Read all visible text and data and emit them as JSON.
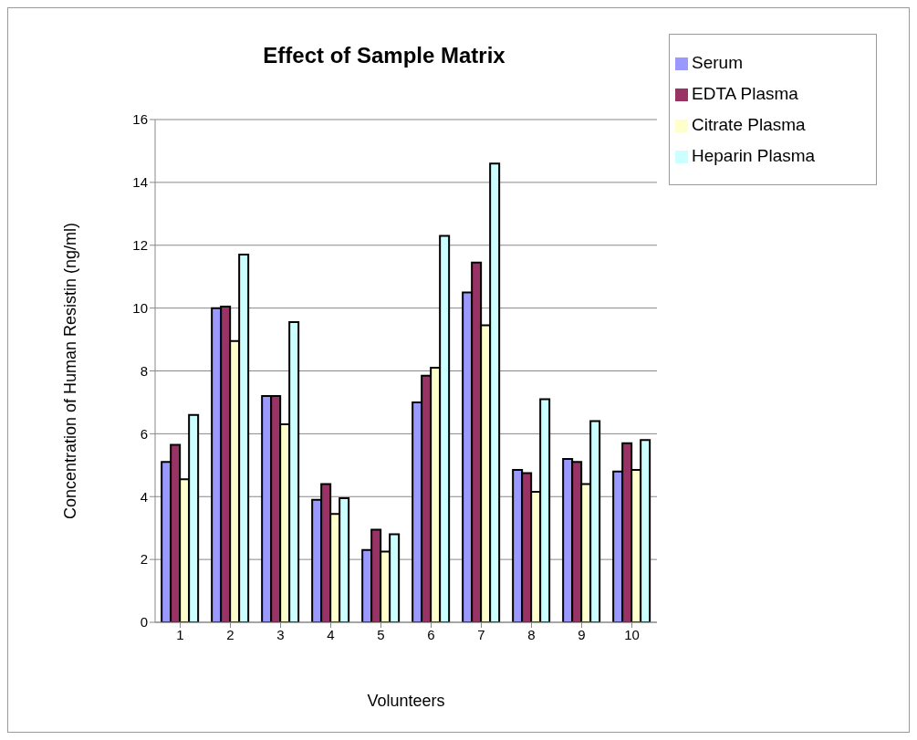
{
  "chart_data": {
    "type": "bar",
    "title": "Effect of Sample Matrix",
    "xlabel": "Volunteers",
    "ylabel": "Concentration of  Human Resistin (ng/ml)",
    "categories": [
      "1",
      "2",
      "3",
      "4",
      "5",
      "6",
      "7",
      "8",
      "9",
      "10"
    ],
    "series": [
      {
        "name": "Serum",
        "color": "#9999ff",
        "values": [
          5.1,
          10.0,
          7.2,
          3.9,
          2.3,
          7.0,
          10.5,
          4.85,
          5.2,
          4.8
        ]
      },
      {
        "name": "EDTA Plasma",
        "color": "#993366",
        "values": [
          5.65,
          10.05,
          7.2,
          4.4,
          2.95,
          7.85,
          11.45,
          4.75,
          5.1,
          5.7
        ]
      },
      {
        "name": "Citrate Plasma",
        "color": "#ffffcc",
        "values": [
          4.55,
          8.95,
          6.3,
          3.45,
          2.25,
          8.1,
          9.45,
          4.15,
          4.4,
          4.85
        ]
      },
      {
        "name": "Heparin Plasma",
        "color": "#ccffff",
        "values": [
          6.6,
          11.7,
          9.55,
          3.95,
          2.8,
          12.3,
          14.6,
          7.1,
          6.4,
          5.8
        ]
      }
    ],
    "ylim": [
      0,
      16
    ],
    "yticks": [
      0,
      2,
      4,
      6,
      8,
      10,
      12,
      14,
      16
    ],
    "grid": "y",
    "legend": "top right"
  }
}
